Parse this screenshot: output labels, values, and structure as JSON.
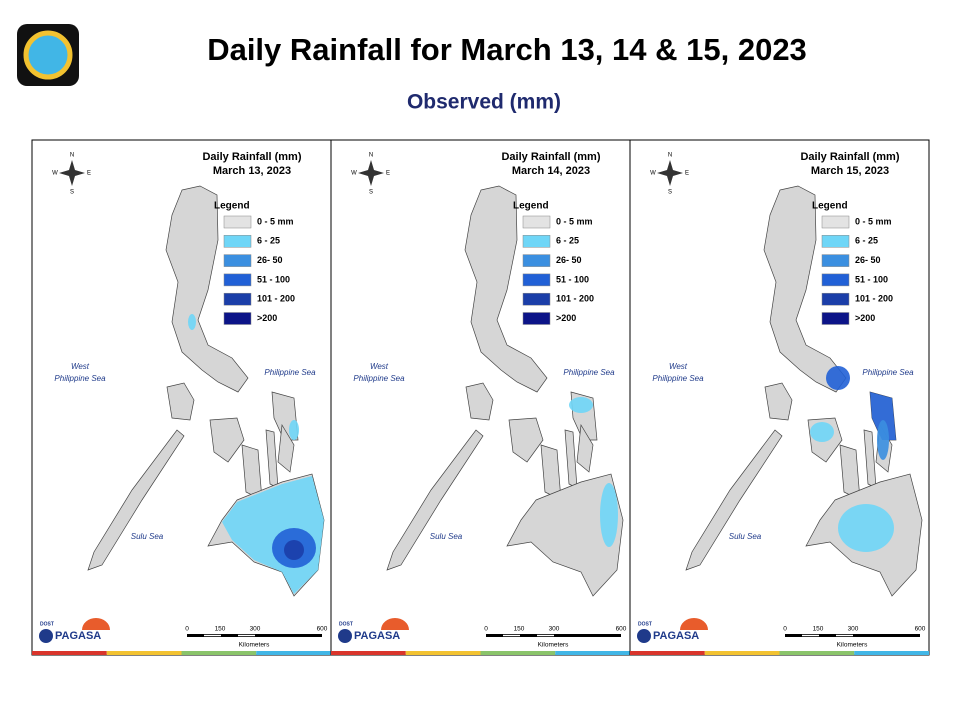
{
  "header": {
    "title": "Daily Rainfall for March 13, 14 & 15, 2023",
    "subtitle": "Observed (mm)"
  },
  "panels": [
    {
      "title": "Daily Rainfall (mm)",
      "date": "March 13, 2023",
      "legend": {
        "title": "Legend",
        "items": [
          {
            "label": "0 - 5 mm",
            "color": "#e3e3e3"
          },
          {
            "label": "6 - 25",
            "color": "#6fd6f7"
          },
          {
            "label": "26- 50",
            "color": "#3b8fe0"
          },
          {
            "label": "51 - 100",
            "color": "#2160d6"
          },
          {
            "label": "101 - 200",
            "color": "#1b3ea8"
          },
          {
            "label": ">200",
            "color": "#0c1488"
          }
        ]
      },
      "seas": {
        "west": [
          "West",
          "Philippine Sea"
        ],
        "east": "Philippine Sea",
        "sulu": "Sulu Sea"
      },
      "compass": {
        "n": "N",
        "s": "S",
        "e": "E",
        "w": "W"
      },
      "scale": {
        "ticks": [
          "0",
          "150",
          "300",
          "600"
        ],
        "unit": "Kilometers"
      },
      "logo": {
        "top": "DOST",
        "name": "PAGASA"
      }
    },
    {
      "title": "Daily Rainfall (mm)",
      "date": "March 14, 2023",
      "legend": {
        "title": "Legend",
        "items": [
          {
            "label": "0 - 5 mm",
            "color": "#e3e3e3"
          },
          {
            "label": "6 - 25",
            "color": "#6fd6f7"
          },
          {
            "label": "26- 50",
            "color": "#3b8fe0"
          },
          {
            "label": "51 - 100",
            "color": "#2160d6"
          },
          {
            "label": "101 - 200",
            "color": "#1b3ea8"
          },
          {
            "label": ">200",
            "color": "#0c1488"
          }
        ]
      },
      "seas": {
        "west": [
          "West",
          "Philippine Sea"
        ],
        "east": "Philippine Sea",
        "sulu": "Sulu Sea"
      },
      "compass": {
        "n": "N",
        "s": "S",
        "e": "E",
        "w": "W"
      },
      "scale": {
        "ticks": [
          "0",
          "150",
          "300",
          "600"
        ],
        "unit": "Kilometers"
      },
      "logo": {
        "top": "DOST",
        "name": "PAGASA"
      }
    },
    {
      "title": "Daily Rainfall (mm)",
      "date": "March 15, 2023",
      "legend": {
        "title": "Legend",
        "items": [
          {
            "label": "0 - 5 mm",
            "color": "#e3e3e3"
          },
          {
            "label": "6 - 25",
            "color": "#6fd6f7"
          },
          {
            "label": "26- 50",
            "color": "#3b8fe0"
          },
          {
            "label": "51 - 100",
            "color": "#2160d6"
          },
          {
            "label": "101 - 200",
            "color": "#1b3ea8"
          },
          {
            "label": ">200",
            "color": "#0c1488"
          }
        ]
      },
      "seas": {
        "west": [
          "West",
          "Philippine Sea"
        ],
        "east": "Philippine Sea",
        "sulu": "Sulu Sea"
      },
      "compass": {
        "n": "N",
        "s": "S",
        "e": "E",
        "w": "W"
      },
      "scale": {
        "ticks": [
          "0",
          "150",
          "300",
          "600"
        ],
        "unit": "Kilometers"
      },
      "logo": {
        "top": "DOST",
        "name": "PAGASA"
      }
    }
  ]
}
